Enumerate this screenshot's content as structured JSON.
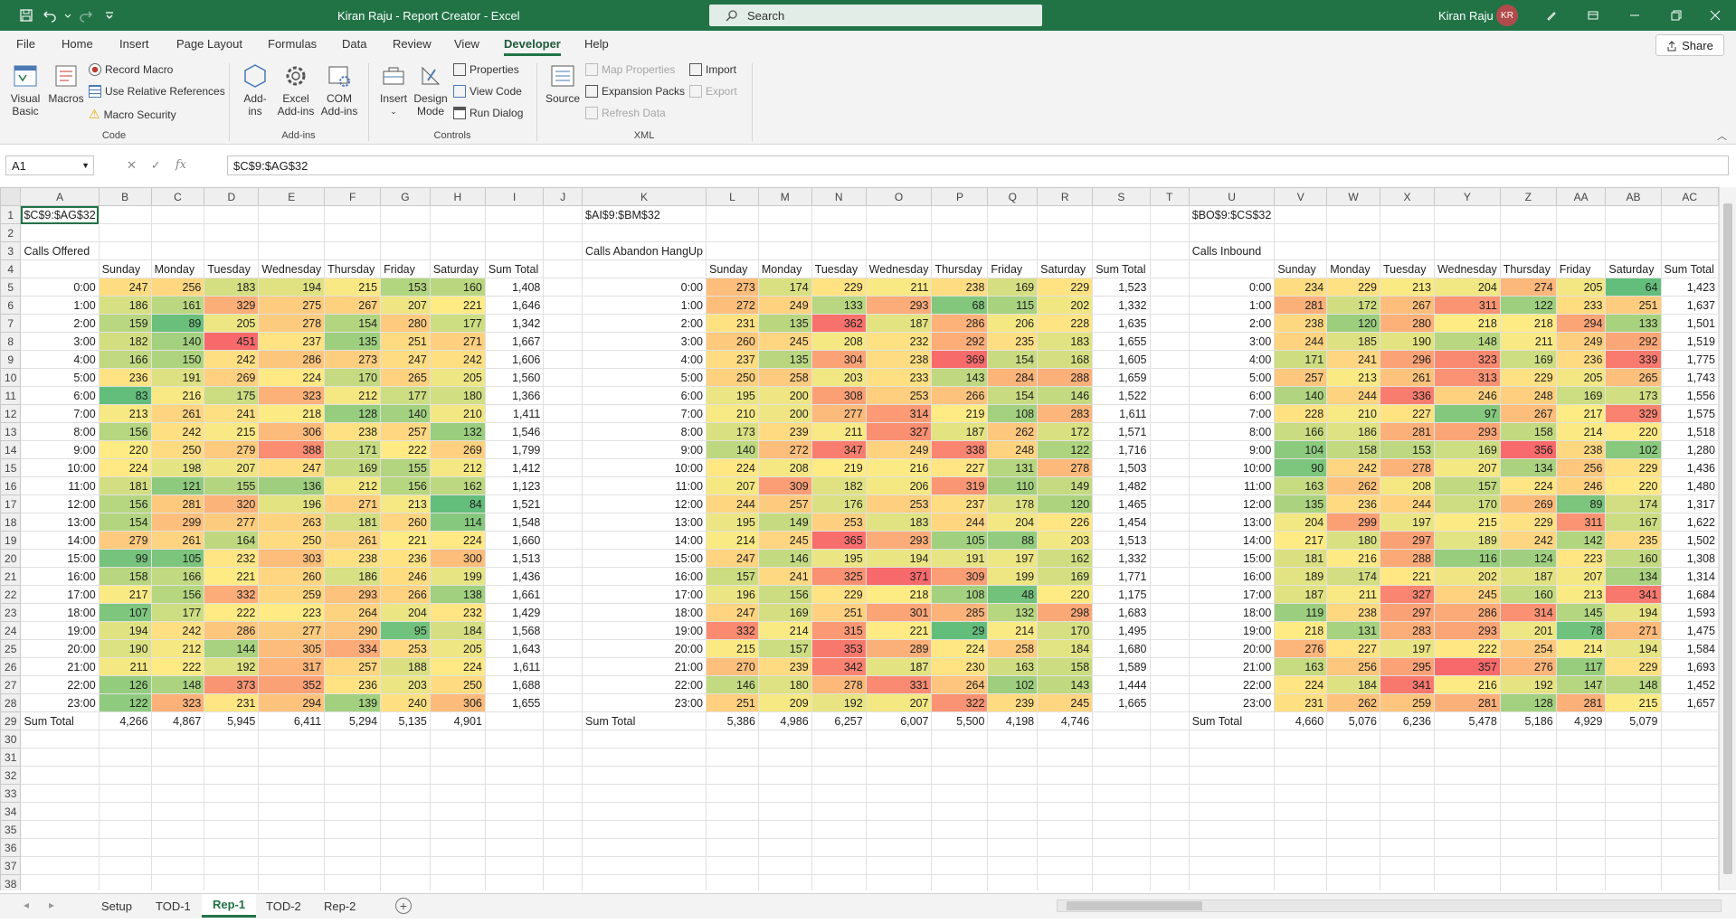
{
  "titlebar": {
    "title": "Kiran Raju - Report Creator  -  Excel",
    "search_placeholder": "Search",
    "user_name": "Kiran Raju",
    "user_initials": "KR"
  },
  "menu": [
    "File",
    "Home",
    "Insert",
    "Page Layout",
    "Formulas",
    "Data",
    "Review",
    "View",
    "Developer",
    "Help"
  ],
  "active_tab": "Developer",
  "share_label": "Share",
  "ribbon": {
    "code": {
      "label": "Code",
      "visual_basic": "Visual Basic",
      "macros": "Macros",
      "record_macro": "Record Macro",
      "relative_refs": "Use Relative References",
      "macro_security": "Macro Security"
    },
    "addins": {
      "label": "Add-ins",
      "addins": "Add-ins",
      "excel_addins": "Excel Add-ins",
      "com_addins": "COM Add-ins"
    },
    "controls": {
      "label": "Controls",
      "insert": "Insert",
      "design_mode": "Design Mode",
      "properties": "Properties",
      "view_code": "View Code",
      "run_dialog": "Run Dialog"
    },
    "xml": {
      "label": "XML",
      "source": "Source",
      "map_properties": "Map Properties",
      "expansion_packs": "Expansion Packs",
      "refresh_data": "Refresh Data",
      "import": "Import",
      "export": "Export"
    }
  },
  "formula_bar": {
    "name_box": "A1",
    "formula": "$C$9:$AG$32"
  },
  "columns": [
    "A",
    "B",
    "C",
    "D",
    "E",
    "F",
    "G",
    "H",
    "I",
    "J",
    "K",
    "L",
    "M",
    "N",
    "O",
    "P",
    "Q",
    "R",
    "S",
    "T",
    "U",
    "V",
    "W",
    "X",
    "Y",
    "Z",
    "AA",
    "AB",
    "AC"
  ],
  "row_numbers": [
    1,
    2,
    3,
    4,
    5,
    6,
    7,
    8,
    9,
    10,
    11,
    12,
    13,
    14,
    15,
    16,
    17,
    18,
    19,
    20,
    21,
    22,
    23,
    24,
    25,
    26,
    27,
    28,
    29,
    30,
    31,
    32,
    33,
    34,
    35,
    36,
    37,
    38
  ],
  "days": [
    "Sunday",
    "Monday",
    "Tuesday",
    "Wednesday",
    "Thursday",
    "Friday",
    "Saturday",
    "Sum Total"
  ],
  "hours": [
    "0:00",
    "1:00",
    "2:00",
    "3:00",
    "4:00",
    "5:00",
    "6:00",
    "7:00",
    "8:00",
    "9:00",
    "10:00",
    "11:00",
    "12:00",
    "13:00",
    "14:00",
    "15:00",
    "16:00",
    "17:00",
    "18:00",
    "19:00",
    "20:00",
    "21:00",
    "22:00",
    "23:00"
  ],
  "sum_total_label": "Sum Total",
  "blocks": [
    {
      "range": "$C$9:$AG$32",
      "title": "Calls Offered",
      "rows": [
        [
          247,
          256,
          183,
          194,
          215,
          153,
          160,
          "1,408"
        ],
        [
          186,
          161,
          329,
          275,
          267,
          207,
          221,
          "1,646"
        ],
        [
          159,
          89,
          205,
          278,
          154,
          280,
          177,
          "1,342"
        ],
        [
          182,
          140,
          451,
          237,
          135,
          251,
          271,
          "1,667"
        ],
        [
          166,
          150,
          242,
          286,
          273,
          247,
          242,
          "1,606"
        ],
        [
          236,
          191,
          269,
          224,
          170,
          265,
          205,
          "1,560"
        ],
        [
          83,
          216,
          175,
          323,
          212,
          177,
          180,
          "1,366"
        ],
        [
          213,
          261,
          241,
          218,
          128,
          140,
          210,
          "1,411"
        ],
        [
          156,
          242,
          215,
          306,
          238,
          257,
          132,
          "1,546"
        ],
        [
          220,
          250,
          279,
          388,
          171,
          222,
          269,
          "1,799"
        ],
        [
          224,
          198,
          207,
          247,
          169,
          155,
          212,
          "1,412"
        ],
        [
          181,
          121,
          155,
          136,
          212,
          156,
          162,
          "1,123"
        ],
        [
          156,
          281,
          320,
          196,
          271,
          213,
          84,
          "1,521"
        ],
        [
          154,
          299,
          277,
          263,
          181,
          260,
          114,
          "1,548"
        ],
        [
          279,
          261,
          164,
          250,
          261,
          221,
          224,
          "1,660"
        ],
        [
          99,
          105,
          232,
          303,
          238,
          236,
          300,
          "1,513"
        ],
        [
          158,
          166,
          221,
          260,
          186,
          246,
          199,
          "1,436"
        ],
        [
          217,
          156,
          332,
          259,
          293,
          266,
          138,
          "1,661"
        ],
        [
          107,
          177,
          222,
          223,
          264,
          204,
          232,
          "1,429"
        ],
        [
          194,
          242,
          286,
          277,
          290,
          95,
          184,
          "1,568"
        ],
        [
          190,
          212,
          144,
          305,
          334,
          253,
          205,
          "1,643"
        ],
        [
          211,
          222,
          192,
          317,
          257,
          188,
          224,
          "1,611"
        ],
        [
          126,
          148,
          373,
          352,
          236,
          203,
          250,
          "1,688"
        ],
        [
          122,
          323,
          231,
          294,
          139,
          240,
          306,
          "1,655"
        ]
      ],
      "totals": [
        "4,266",
        "4,867",
        "5,945",
        "6,411",
        "5,294",
        "5,135",
        "4,901"
      ]
    },
    {
      "range": "$AI$9:$BM$32",
      "title": "Calls Abandon HangUp",
      "rows": [
        [
          273,
          174,
          229,
          211,
          238,
          169,
          229,
          "1,523"
        ],
        [
          272,
          249,
          133,
          293,
          68,
          115,
          202,
          "1,332"
        ],
        [
          231,
          135,
          362,
          187,
          286,
          206,
          228,
          "1,635"
        ],
        [
          260,
          245,
          208,
          232,
          292,
          235,
          183,
          "1,655"
        ],
        [
          237,
          135,
          304,
          238,
          369,
          154,
          168,
          "1,605"
        ],
        [
          250,
          258,
          203,
          233,
          143,
          284,
          288,
          "1,659"
        ],
        [
          195,
          200,
          308,
          253,
          266,
          154,
          146,
          "1,522"
        ],
        [
          210,
          200,
          277,
          314,
          219,
          108,
          283,
          "1,611"
        ],
        [
          173,
          239,
          211,
          327,
          187,
          262,
          172,
          "1,571"
        ],
        [
          140,
          272,
          347,
          249,
          338,
          248,
          122,
          "1,716"
        ],
        [
          224,
          208,
          219,
          216,
          227,
          131,
          278,
          "1,503"
        ],
        [
          207,
          309,
          182,
          206,
          319,
          110,
          149,
          "1,482"
        ],
        [
          244,
          257,
          176,
          253,
          237,
          178,
          120,
          "1,465"
        ],
        [
          195,
          149,
          253,
          183,
          244,
          204,
          226,
          "1,454"
        ],
        [
          214,
          245,
          365,
          293,
          105,
          88,
          203,
          "1,513"
        ],
        [
          247,
          146,
          195,
          194,
          191,
          197,
          162,
          "1,332"
        ],
        [
          157,
          241,
          325,
          371,
          309,
          199,
          169,
          "1,771"
        ],
        [
          196,
          156,
          229,
          218,
          108,
          48,
          220,
          "1,175"
        ],
        [
          247,
          169,
          251,
          301,
          285,
          132,
          298,
          "1,683"
        ],
        [
          332,
          214,
          315,
          221,
          29,
          214,
          170,
          "1,495"
        ],
        [
          215,
          157,
          353,
          289,
          224,
          258,
          184,
          "1,680"
        ],
        [
          270,
          239,
          342,
          187,
          230,
          163,
          158,
          "1,589"
        ],
        [
          146,
          180,
          278,
          331,
          264,
          102,
          143,
          "1,444"
        ],
        [
          251,
          209,
          192,
          207,
          322,
          239,
          245,
          "1,665"
        ]
      ],
      "totals": [
        "5,386",
        "4,986",
        "6,257",
        "6,007",
        "5,500",
        "4,198",
        "4,746"
      ]
    },
    {
      "range": "$BO$9:$CS$32",
      "title": "Calls Inbound",
      "rows": [
        [
          234,
          229,
          213,
          204,
          274,
          205,
          64,
          "1,423"
        ],
        [
          281,
          172,
          267,
          311,
          122,
          233,
          251,
          "1,637"
        ],
        [
          238,
          120,
          280,
          218,
          218,
          294,
          133,
          "1,501"
        ],
        [
          244,
          185,
          190,
          148,
          211,
          249,
          292,
          "1,519"
        ],
        [
          171,
          241,
          296,
          323,
          169,
          236,
          339,
          "1,775"
        ],
        [
          257,
          213,
          261,
          313,
          229,
          205,
          265,
          "1,743"
        ],
        [
          140,
          244,
          336,
          246,
          248,
          169,
          173,
          "1,556"
        ],
        [
          228,
          210,
          227,
          97,
          267,
          217,
          329,
          "1,575"
        ],
        [
          166,
          186,
          281,
          293,
          158,
          214,
          220,
          "1,518"
        ],
        [
          104,
          158,
          153,
          169,
          356,
          238,
          102,
          "1,280"
        ],
        [
          90,
          242,
          278,
          207,
          134,
          256,
          229,
          "1,436"
        ],
        [
          163,
          262,
          208,
          157,
          224,
          246,
          220,
          "1,480"
        ],
        [
          135,
          236,
          244,
          170,
          269,
          89,
          174,
          "1,317"
        ],
        [
          204,
          299,
          197,
          215,
          229,
          311,
          167,
          "1,622"
        ],
        [
          217,
          180,
          297,
          189,
          242,
          142,
          235,
          "1,502"
        ],
        [
          181,
          216,
          288,
          116,
          124,
          223,
          160,
          "1,308"
        ],
        [
          189,
          174,
          221,
          202,
          187,
          207,
          134,
          "1,314"
        ],
        [
          187,
          211,
          327,
          245,
          160,
          213,
          341,
          "1,684"
        ],
        [
          119,
          238,
          297,
          286,
          314,
          145,
          194,
          "1,593"
        ],
        [
          218,
          131,
          283,
          293,
          201,
          78,
          271,
          "1,475"
        ],
        [
          276,
          227,
          197,
          222,
          254,
          214,
          194,
          "1,584"
        ],
        [
          163,
          256,
          295,
          357,
          276,
          117,
          229,
          "1,693"
        ],
        [
          224,
          184,
          341,
          216,
          192,
          147,
          148,
          "1,452"
        ],
        [
          231,
          262,
          259,
          281,
          128,
          281,
          215,
          "1,657"
        ]
      ],
      "totals": [
        "4,660",
        "5,076",
        "6,236",
        "5,478",
        "5,186",
        "4,929",
        "5,079"
      ]
    }
  ],
  "sheet_tabs": [
    "Setup",
    "TOD-1",
    "Rep-1",
    "TOD-2",
    "Rep-2"
  ],
  "active_sheet": "Rep-1",
  "colors": {
    "accent": "#217346",
    "heat_low": "#63be7b",
    "heat_mid": "#ffeb84",
    "heat_high": "#f8696b"
  }
}
